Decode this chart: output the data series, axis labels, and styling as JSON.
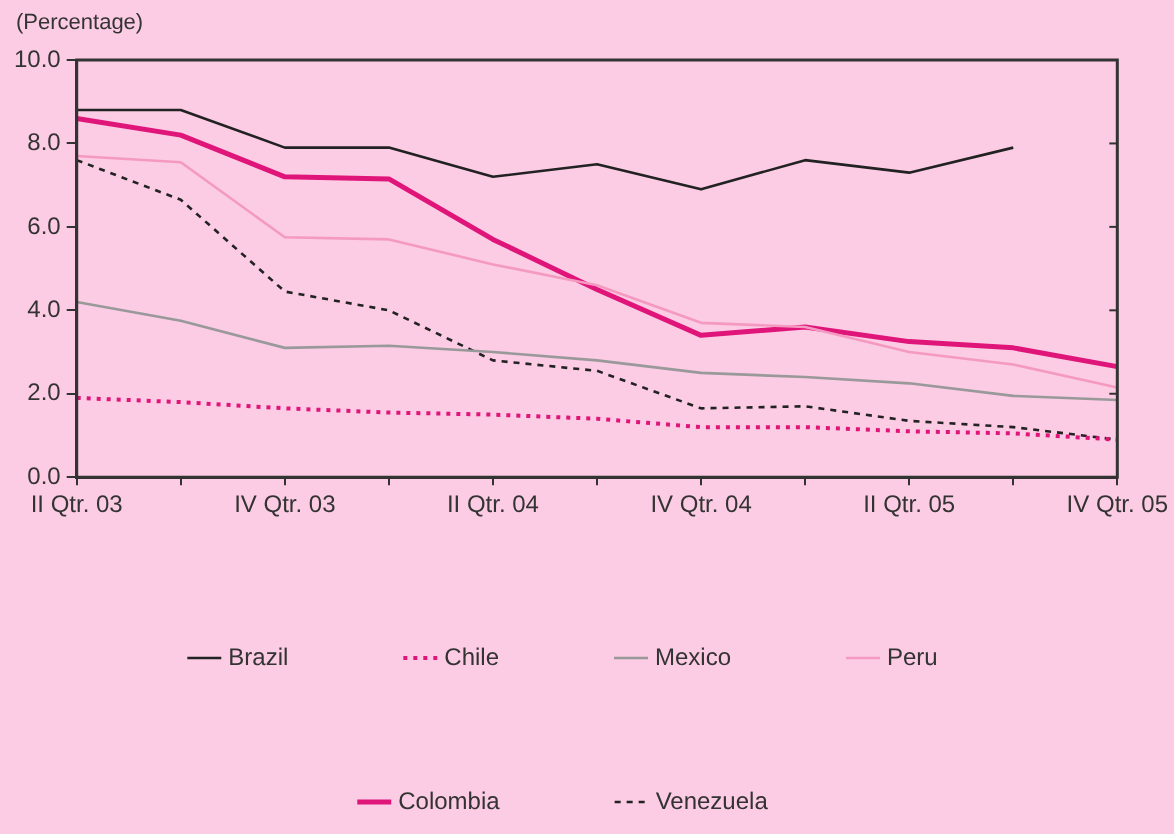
{
  "chart_data": {
    "type": "line",
    "ylabel": "(Percentage)",
    "categories": [
      "II Qtr. 03",
      null,
      "IV Qtr. 03",
      null,
      "II Qtr. 04",
      null,
      "IV Qtr. 04",
      null,
      "II Qtr. 05",
      null,
      "IV Qtr. 05"
    ],
    "ylim": [
      0,
      10
    ],
    "yticks": [
      {
        "value": 0,
        "label": "0.0"
      },
      {
        "value": 2,
        "label": "2.0"
      },
      {
        "value": 4,
        "label": "4.0"
      },
      {
        "value": 6,
        "label": "6.0"
      },
      {
        "value": 8,
        "label": "8.0"
      },
      {
        "value": 10,
        "label": "10.0"
      }
    ],
    "grid": false,
    "legend": "bottom",
    "marker": "none",
    "series": [
      {
        "name": "Brazil",
        "color": "#222222",
        "line_style": "solid",
        "values": [
          8.8,
          8.8,
          7.9,
          7.9,
          7.2,
          7.5,
          6.9,
          7.6,
          7.3,
          7.9,
          null
        ]
      },
      {
        "name": "Chile",
        "color": "#e0157a",
        "line_style": "dotted",
        "values": [
          1.9,
          1.8,
          1.65,
          1.55,
          1.5,
          1.4,
          1.2,
          1.2,
          1.1,
          1.05,
          0.9
        ]
      },
      {
        "name": "Mexico",
        "color": "#999999",
        "line_style": "solid",
        "values": [
          4.2,
          3.75,
          3.1,
          3.15,
          3.0,
          2.8,
          2.5,
          2.4,
          2.25,
          1.95,
          1.85
        ]
      },
      {
        "name": "Peru",
        "color": "#f49ac1",
        "line_style": "solid",
        "values": [
          7.7,
          7.55,
          5.75,
          5.7,
          5.1,
          4.6,
          3.7,
          3.6,
          3.0,
          2.7,
          2.15
        ]
      },
      {
        "name": "Colombia",
        "color": "#e0157a",
        "line_style": "solid",
        "values": [
          8.6,
          8.2,
          7.2,
          7.15,
          5.7,
          4.5,
          3.4,
          3.6,
          3.25,
          3.1,
          2.65
        ]
      },
      {
        "name": "Venezuela",
        "color": "#222222",
        "line_style": "dashed",
        "values": [
          7.6,
          6.65,
          4.45,
          4.0,
          2.8,
          2.55,
          1.65,
          1.7,
          1.35,
          1.2,
          0.9
        ]
      }
    ]
  }
}
